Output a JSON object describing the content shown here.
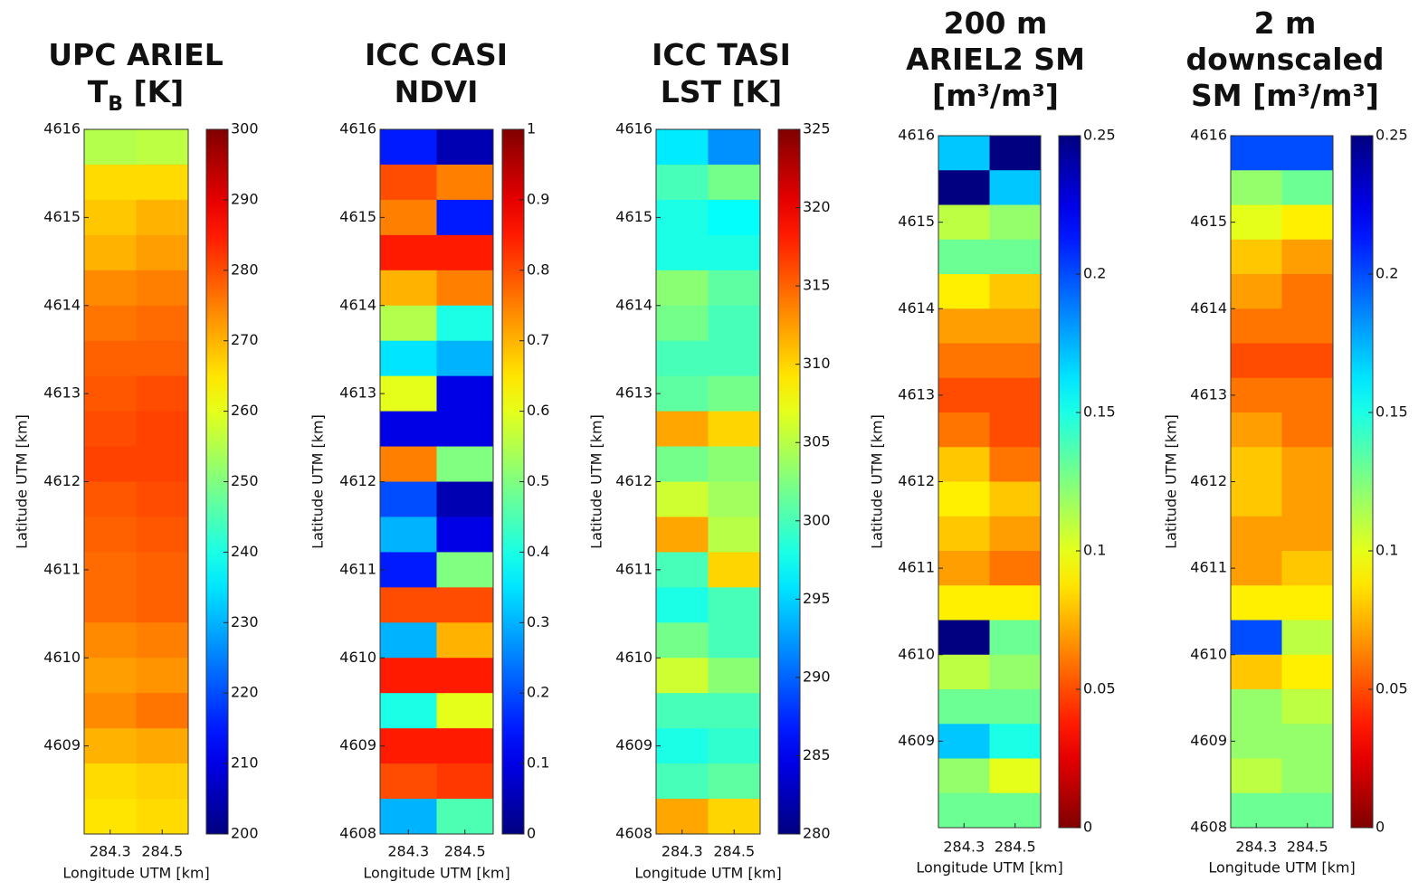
{
  "chart_data": [
    {
      "type": "heatmap",
      "title": [
        [
          "UPC ARIEL"
        ],
        [
          {
            "text": "T"
          },
          {
            "text": "B",
            "sub": true
          },
          {
            "text": " [K]"
          }
        ]
      ],
      "xlabel": "Longitude UTM [km]",
      "ylabel": "Latitude UTM [km]",
      "xlim": [
        284.2,
        284.6
      ],
      "xticks": [
        284.3,
        284.5
      ],
      "ylim": [
        4608,
        4616
      ],
      "yticks": [
        4609,
        4610,
        4611,
        4612,
        4613,
        4614,
        4615,
        4616
      ],
      "colormap": "jet",
      "reverse": false,
      "clim": [
        200,
        300
      ],
      "cticks": [
        200,
        210,
        220,
        230,
        240,
        250,
        260,
        270,
        280,
        290,
        300
      ],
      "values": [
        [
          255,
          256
        ],
        [
          266,
          266
        ],
        [
          268,
          270
        ],
        [
          270,
          272
        ],
        [
          274,
          275
        ],
        [
          276,
          277
        ],
        [
          278,
          278
        ],
        [
          279,
          280
        ],
        [
          280,
          281
        ],
        [
          281,
          281
        ],
        [
          279,
          280
        ],
        [
          278,
          279
        ],
        [
          277,
          278
        ],
        [
          277,
          278
        ],
        [
          274,
          275
        ],
        [
          272,
          273
        ],
        [
          274,
          276
        ],
        [
          270,
          271
        ],
        [
          266,
          267
        ],
        [
          265,
          266
        ]
      ]
    },
    {
      "type": "heatmap",
      "title": [
        [
          "ICC CASI"
        ],
        [
          "NDVI"
        ]
      ],
      "xlabel": "Longitude UTM [km]",
      "ylabel": "Latitude UTM [km]",
      "xlim": [
        284.2,
        284.6
      ],
      "xticks": [
        284.3,
        284.5
      ],
      "ylim": [
        4608,
        4616
      ],
      "yticks": [
        4608,
        4609,
        4610,
        4611,
        4612,
        4613,
        4614,
        4615,
        4616
      ],
      "colormap": "jet",
      "reverse": false,
      "clim": [
        0,
        1
      ],
      "cticks": [
        0,
        0.1,
        0.2,
        0.3,
        0.4,
        0.5,
        0.6,
        0.7,
        0.8,
        0.9,
        1
      ],
      "values": [
        [
          0.15,
          0.05
        ],
        [
          0.8,
          0.75
        ],
        [
          0.75,
          0.15
        ],
        [
          0.85,
          0.85
        ],
        [
          0.7,
          0.75
        ],
        [
          0.55,
          0.4
        ],
        [
          0.35,
          0.3
        ],
        [
          0.6,
          0.1
        ],
        [
          0.1,
          0.1
        ],
        [
          0.75,
          0.5
        ],
        [
          0.2,
          0.05
        ],
        [
          0.3,
          0.1
        ],
        [
          0.15,
          0.5
        ],
        [
          0.8,
          0.8
        ],
        [
          0.3,
          0.7
        ],
        [
          0.85,
          0.85
        ],
        [
          0.4,
          0.6
        ],
        [
          0.85,
          0.85
        ],
        [
          0.8,
          0.82
        ],
        [
          0.3,
          0.45
        ]
      ]
    },
    {
      "type": "heatmap",
      "title": [
        [
          "ICC TASI"
        ],
        [
          "LST [K]"
        ]
      ],
      "xlabel": "Longitude UTM [km]",
      "ylabel": "Latitude UTM [km]",
      "xlim": [
        284.2,
        284.6
      ],
      "xticks": [
        284.3,
        284.5
      ],
      "ylim": [
        4608,
        4616
      ],
      "yticks": [
        4608,
        4609,
        4610,
        4611,
        4612,
        4613,
        4614,
        4615,
        4616
      ],
      "colormap": "jet",
      "reverse": false,
      "clim": [
        280,
        325
      ],
      "cticks": [
        280,
        285,
        290,
        295,
        300,
        305,
        310,
        315,
        320,
        325
      ],
      "values": [
        [
          296,
          292
        ],
        [
          300,
          302
        ],
        [
          298,
          297
        ],
        [
          298,
          298
        ],
        [
          303,
          301
        ],
        [
          302,
          300
        ],
        [
          300,
          300
        ],
        [
          301,
          302
        ],
        [
          312,
          310
        ],
        [
          302,
          303
        ],
        [
          306,
          304
        ],
        [
          312,
          305
        ],
        [
          300,
          310
        ],
        [
          298,
          300
        ],
        [
          302,
          300
        ],
        [
          306,
          303
        ],
        [
          300,
          300
        ],
        [
          298,
          299
        ],
        [
          300,
          301
        ],
        [
          312,
          310
        ]
      ]
    },
    {
      "type": "heatmap",
      "title": [
        [
          "200 m"
        ],
        [
          "ARIEL2 SM"
        ],
        [
          "[m³/m³]"
        ]
      ],
      "xlabel": "Longitude UTM [km]",
      "ylabel": "Latitude UTM [km]",
      "xlim": [
        284.2,
        284.6
      ],
      "xticks": [
        284.3,
        284.5
      ],
      "ylim": [
        4608,
        4616
      ],
      "yticks": [
        4609,
        4610,
        4611,
        4612,
        4613,
        4614,
        4615,
        4616
      ],
      "colormap": "jet",
      "reverse": true,
      "clim": [
        0,
        0.25
      ],
      "cticks": [
        0,
        0.05,
        0.1,
        0.15,
        0.2,
        0.25
      ],
      "values": [
        [
          0.17,
          0.25
        ],
        [
          0.25,
          0.17
        ],
        [
          0.11,
          0.12
        ],
        [
          0.13,
          0.13
        ],
        [
          0.09,
          0.08
        ],
        [
          0.07,
          0.07
        ],
        [
          0.06,
          0.06
        ],
        [
          0.05,
          0.05
        ],
        [
          0.06,
          0.05
        ],
        [
          0.08,
          0.06
        ],
        [
          0.09,
          0.08
        ],
        [
          0.08,
          0.07
        ],
        [
          0.07,
          0.06
        ],
        [
          0.09,
          0.09
        ],
        [
          0.25,
          0.13
        ],
        [
          0.11,
          0.12
        ],
        [
          0.13,
          0.13
        ],
        [
          0.17,
          0.15
        ],
        [
          0.12,
          0.1
        ],
        [
          0.13,
          0.13
        ]
      ]
    },
    {
      "type": "heatmap",
      "title": [
        [
          "2 m"
        ],
        [
          "downscaled"
        ],
        [
          "SM [m³/m³]"
        ]
      ],
      "xlabel": "Longitude UTM [km]",
      "ylabel": "Latitude UTM [km]",
      "xlim": [
        284.2,
        284.6
      ],
      "xticks": [
        284.3,
        284.5
      ],
      "ylim": [
        4608,
        4616
      ],
      "yticks": [
        4608,
        4609,
        4610,
        4611,
        4612,
        4613,
        4614,
        4615,
        4616
      ],
      "colormap": "jet",
      "reverse": true,
      "clim": [
        0,
        0.25
      ],
      "cticks": [
        0,
        0.05,
        0.1,
        0.15,
        0.2,
        0.25
      ],
      "values": [
        [
          0.2,
          0.2
        ],
        [
          0.12,
          0.13
        ],
        [
          0.1,
          0.09
        ],
        [
          0.08,
          0.07
        ],
        [
          0.07,
          0.06
        ],
        [
          0.06,
          0.06
        ],
        [
          0.05,
          0.05
        ],
        [
          0.06,
          0.06
        ],
        [
          0.07,
          0.06
        ],
        [
          0.08,
          0.07
        ],
        [
          0.08,
          0.07
        ],
        [
          0.07,
          0.07
        ],
        [
          0.07,
          0.08
        ],
        [
          0.09,
          0.09
        ],
        [
          0.2,
          0.11
        ],
        [
          0.08,
          0.09
        ],
        [
          0.12,
          0.11
        ],
        [
          0.12,
          0.12
        ],
        [
          0.11,
          0.12
        ],
        [
          0.13,
          0.13
        ]
      ]
    }
  ]
}
